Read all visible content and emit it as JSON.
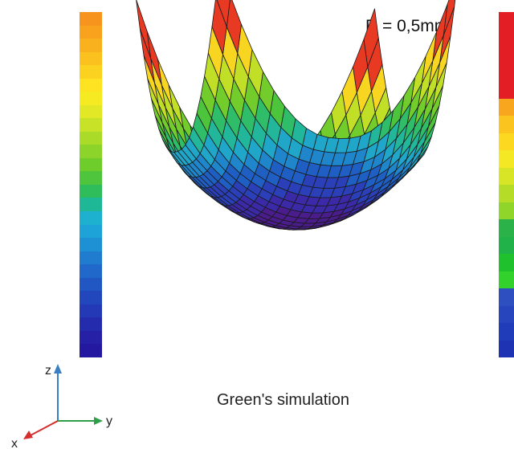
{
  "annotation": {
    "diameter": "D = 0,5mm"
  },
  "caption": "Green's simulation",
  "axes": {
    "z": "z",
    "y": "y",
    "x": "x"
  },
  "colors": {
    "z_axis": "#3a7fc4",
    "y_axis": "#2e9e4a",
    "x_axis": "#d62d2d",
    "mesh_line": "#1a1a1a"
  },
  "colormap_left": [
    "#f7941d",
    "#f9a21d",
    "#fab11e",
    "#fbc21f",
    "#fcd220",
    "#fde322",
    "#f6ea23",
    "#e2e825",
    "#c8e327",
    "#a9db28",
    "#8dd42a",
    "#6fcd2b",
    "#4fc53e",
    "#2fbd5c",
    "#1fb896",
    "#1eb1cf",
    "#1ea3d9",
    "#1e90d4",
    "#1f7ccf",
    "#2068c9",
    "#2157c3",
    "#2247bd",
    "#2339b5",
    "#242bac",
    "#2520a5",
    "#2518a0"
  ],
  "colormap_right": [
    "#e31e24",
    "#e31e24",
    "#e31e24",
    "#e31e24",
    "#e31e24",
    "#f7a61e",
    "#fbc41f",
    "#fcd820",
    "#f4e723",
    "#d8e426",
    "#b5dd28",
    "#8fd52a",
    "#2bb34a",
    "#22b24a",
    "#1fc12d",
    "#33d12b",
    "#2e4fc0",
    "#2745bd",
    "#213cb8",
    "#1d33b3"
  ],
  "surface_bands": [
    "#4a1c8c",
    "#3a2aa8",
    "#2a3fb8",
    "#1f5fc4",
    "#1f86cc",
    "#1fa6c8",
    "#22b79a",
    "#2fbd6a",
    "#4cc53c",
    "#72cc2c",
    "#9ad52a",
    "#c2df27",
    "#e4e824",
    "#f7d520",
    "#f6a81e",
    "#e83a22"
  ]
}
